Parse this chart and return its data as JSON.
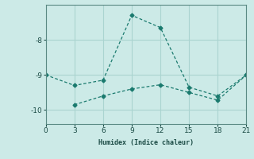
{
  "xlabel": "Humidex (Indice chaleur)",
  "background_color": "#cceae7",
  "grid_color": "#aad4d0",
  "line_color": "#1a7a6e",
  "line1_x": [
    0,
    3,
    6,
    9,
    12,
    15,
    18,
    21
  ],
  "line1_y": [
    -9.0,
    -9.3,
    -9.15,
    -7.3,
    -7.65,
    -9.35,
    -9.6,
    -9.0
  ],
  "line2_x": [
    3,
    6,
    9,
    12,
    15,
    18,
    21
  ],
  "line2_y": [
    -9.85,
    -9.6,
    -9.4,
    -9.28,
    -9.5,
    -9.72,
    -9.0
  ],
  "xlim": [
    0,
    21
  ],
  "ylim": [
    -10.4,
    -7.0
  ],
  "xticks": [
    0,
    3,
    6,
    9,
    12,
    15,
    18,
    21
  ],
  "yticks": [
    -10,
    -9,
    -8
  ],
  "figsize": [
    3.2,
    2.0
  ],
  "dpi": 100
}
